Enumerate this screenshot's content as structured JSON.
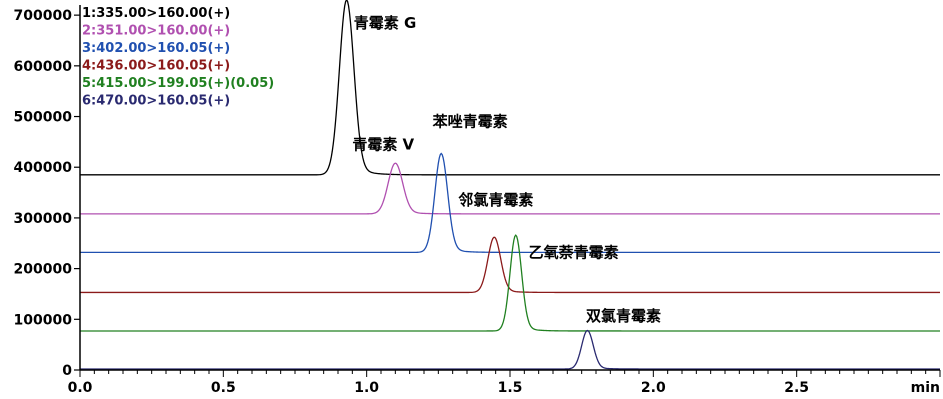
{
  "chart_data": {
    "type": "line",
    "xlabel": "min",
    "xlim": [
      0,
      3.0
    ],
    "ylim": [
      0,
      720000
    ],
    "x_ticks": [
      "0.0",
      "0.5",
      "1.0",
      "1.5",
      "2.0",
      "2.5"
    ],
    "y_ticks": [
      "0",
      "100000",
      "200000",
      "300000",
      "400000",
      "500000",
      "600000",
      "700000"
    ],
    "grid": false,
    "legend_placement": "top-left",
    "series": [
      {
        "name": "1:335.00>160.00(+)",
        "color": "#000000",
        "baseline": 385000,
        "peak_x": 0.93,
        "peak_y": 730000,
        "width": 0.025
      },
      {
        "name": "2:351.00>160.00(+)",
        "color": "#b050b0",
        "baseline": 308000,
        "peak_x": 1.1,
        "peak_y": 408000,
        "width": 0.025
      },
      {
        "name": "3:402.00>160.05(+)",
        "color": "#2050b0",
        "baseline": 232000,
        "peak_x": 1.26,
        "peak_y": 427000,
        "width": 0.022
      },
      {
        "name": "4:436.00>160.05(+)",
        "color": "#8b1a1a",
        "baseline": 153000,
        "peak_x": 1.445,
        "peak_y": 262000,
        "width": 0.022
      },
      {
        "name": "5:415.00>199.05(+)(0.05)",
        "color": "#208020",
        "baseline": 77000,
        "peak_x": 1.52,
        "peak_y": 266000,
        "width": 0.02
      },
      {
        "name": "6:470.00>160.05(+)",
        "color": "#2a2a70",
        "baseline": 2000,
        "peak_x": 1.77,
        "peak_y": 78000,
        "width": 0.02
      }
    ],
    "annotations": [
      {
        "text": "青霉素 G",
        "x": 0.955,
        "y": 675000
      },
      {
        "text": "青霉素 V",
        "x": 0.95,
        "y": 435000
      },
      {
        "text": "苯唑青霉素",
        "x": 1.23,
        "y": 480000
      },
      {
        "text": "邻氯青霉素",
        "x": 1.32,
        "y": 325000
      },
      {
        "text": "乙氧萘青霉素",
        "x": 1.565,
        "y": 222000
      },
      {
        "text": "双氯青霉素",
        "x": 1.765,
        "y": 97000
      }
    ]
  }
}
